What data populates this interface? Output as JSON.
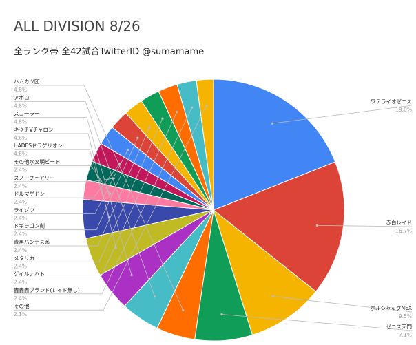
{
  "chart_data": {
    "type": "pie",
    "title": "ALL DIVISION 8/26",
    "subtitle": "全ランク帯 全42試合TwitterID @sumamame",
    "slices": [
      {
        "label": "ワテライオゼニス",
        "value": 19.0,
        "pct_label": "19.0%",
        "color": "#4285f4"
      },
      {
        "label": "赤白レイド",
        "value": 16.7,
        "pct_label": "16.7%",
        "color": "#db4437"
      },
      {
        "label": "ボルシャックNEX",
        "value": 9.5,
        "pct_label": "9.5%",
        "color": "#f4b400"
      },
      {
        "label": "ゼニス天門",
        "value": 7.1,
        "pct_label": "7.1%",
        "color": "#0f9d58"
      },
      {
        "label": "ハムカツ団",
        "value": 4.8,
        "pct_label": "4.8%",
        "color": "#ff6d01"
      },
      {
        "label": "アポロ",
        "value": 4.8,
        "pct_label": "4.8%",
        "color": "#46bdc6"
      },
      {
        "label": "スコーラー",
        "value": 4.8,
        "pct_label": "4.8%",
        "color": "#ab30c4"
      },
      {
        "label": "キクチVチャロン",
        "value": 4.8,
        "pct_label": "4.8%",
        "color": "#c0ba24"
      },
      {
        "label": "HADESドラゲリオン",
        "value": 4.8,
        "pct_label": "4.8%",
        "color": "#3949ab"
      },
      {
        "label": "その他水文明ビート",
        "value": 2.4,
        "pct_label": "2.4%",
        "color": "#ff7aa2"
      },
      {
        "label": "スノーフェアリー",
        "value": 2.4,
        "pct_label": "2.4%",
        "color": "#00695c"
      },
      {
        "label": "ドルマゲドン",
        "value": 2.4,
        "pct_label": "2.4%",
        "color": "#c2185b"
      },
      {
        "label": "ライゾウ",
        "value": 2.4,
        "pct_label": "2.4%",
        "color": "#4285f4"
      },
      {
        "label": "ドギラゴン剣",
        "value": 2.4,
        "pct_label": "2.4%",
        "color": "#db4437"
      },
      {
        "label": "青黒ハンデス系",
        "value": 2.4,
        "pct_label": "2.4%",
        "color": "#f4b400"
      },
      {
        "label": "メタリカ",
        "value": 2.4,
        "pct_label": "2.4%",
        "color": "#0f9d58"
      },
      {
        "label": "ゲイルナハト",
        "value": 2.4,
        "pct_label": "2.4%",
        "color": "#ff6d01"
      },
      {
        "label": "轟轟轟ブランド(レイド無し)",
        "value": 2.4,
        "pct_label": "2.4%",
        "color": "#46bdc6"
      },
      {
        "label": "その他",
        "value": 2.1,
        "pct_label": "2.1%",
        "color": "#f4b400"
      }
    ],
    "legend": "none"
  }
}
